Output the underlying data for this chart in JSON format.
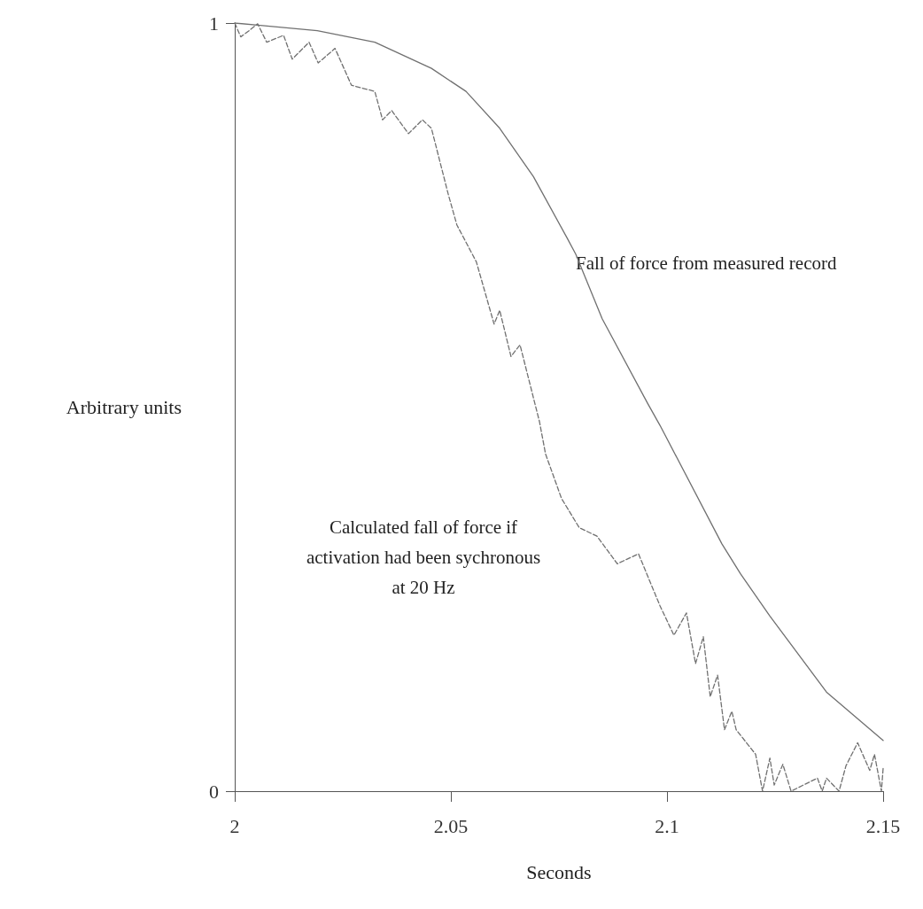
{
  "chart_data": {
    "type": "line",
    "xlabel": "Seconds",
    "ylabel": "Arbitrary units",
    "xlim": [
      2,
      2.15
    ],
    "ylim": [
      0,
      1
    ],
    "xticks": [
      2,
      {
        "value": 2.05,
        "label": "2.05"
      },
      {
        "value": 2.1,
        "label": "2.1"
      },
      {
        "value": 2.15,
        "label": "2.15"
      }
    ],
    "yticks": [
      0,
      1
    ],
    "grid": false,
    "legend": false,
    "marker": "none",
    "series": [
      {
        "name": "Fall of force from measured record",
        "color": "#707070",
        "line_style": "solid",
        "x": [
          2,
          2.0059,
          2.0191,
          2.0324,
          2.0455,
          2.0535,
          2.0613,
          2.0691,
          2.077,
          2.0789,
          2.085,
          2.0955,
          2.0984,
          2.1127,
          2.117,
          2.1238,
          2.1369,
          2.15
        ],
        "values": [
          1,
          0.997,
          0.99,
          0.975,
          0.941,
          0.911,
          0.863,
          0.8,
          0.719,
          0.699,
          0.615,
          0.505,
          0.476,
          0.322,
          0.283,
          0.228,
          0.129,
          0.066
        ]
      },
      {
        "name": "Calculated fall of force if\nactivation had been sychronous\nat 20 Hz",
        "color": "#707070",
        "line_style": "dashed",
        "x": [
          2,
          2.0014,
          2.0033,
          2.0053,
          2.0074,
          2.0113,
          2.0133,
          2.0172,
          2.0193,
          2.0232,
          2.027,
          2.0324,
          2.0342,
          2.0363,
          2.0402,
          2.0434,
          2.0455,
          2.0494,
          2.0514,
          2.0559,
          2.06,
          2.0613,
          2.0639,
          2.066,
          2.0705,
          2.0719,
          2.0756,
          2.0797,
          2.0838,
          2.0885,
          2.0934,
          2.0984,
          2.1016,
          2.1045,
          2.1066,
          2.1084,
          2.11,
          2.1117,
          2.1133,
          2.115,
          2.116,
          2.1205,
          2.1221,
          2.1238,
          2.1248,
          2.1268,
          2.1287,
          2.1348,
          2.1359,
          2.1369,
          2.1398,
          2.1414,
          2.1441,
          2.1469,
          2.148,
          2.1496,
          2.15
        ],
        "values": [
          1,
          0.982,
          0.99,
          0.999,
          0.975,
          0.984,
          0.953,
          0.975,
          0.948,
          0.967,
          0.919,
          0.911,
          0.874,
          0.886,
          0.856,
          0.874,
          0.863,
          0.777,
          0.737,
          0.689,
          0.608,
          0.626,
          0.566,
          0.581,
          0.481,
          0.439,
          0.381,
          0.343,
          0.332,
          0.296,
          0.309,
          0.241,
          0.203,
          0.232,
          0.166,
          0.201,
          0.123,
          0.151,
          0.08,
          0.104,
          0.08,
          0.048,
          0,
          0.043,
          0.008,
          0.035,
          0,
          0.017,
          0,
          0.017,
          0,
          0.033,
          0.063,
          0.027,
          0.048,
          0,
          0.03
        ]
      }
    ]
  }
}
